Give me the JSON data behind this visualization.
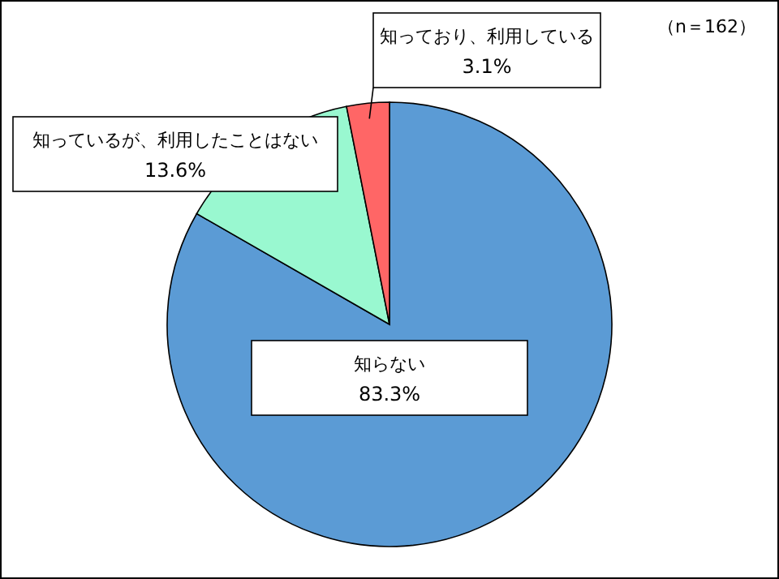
{
  "chart_data": {
    "type": "pie",
    "categories": [
      "知らない",
      "知っているが、利用したことはない",
      "知っており、利用している"
    ],
    "values": [
      83.3,
      13.6,
      3.1
    ],
    "value_labels": [
      "83.3%",
      "13.6%",
      "3.1%"
    ],
    "colors": [
      "#5b9bd5",
      "#99f8d0",
      "#ff6666"
    ],
    "annotations": [
      "（n＝162）"
    ]
  }
}
